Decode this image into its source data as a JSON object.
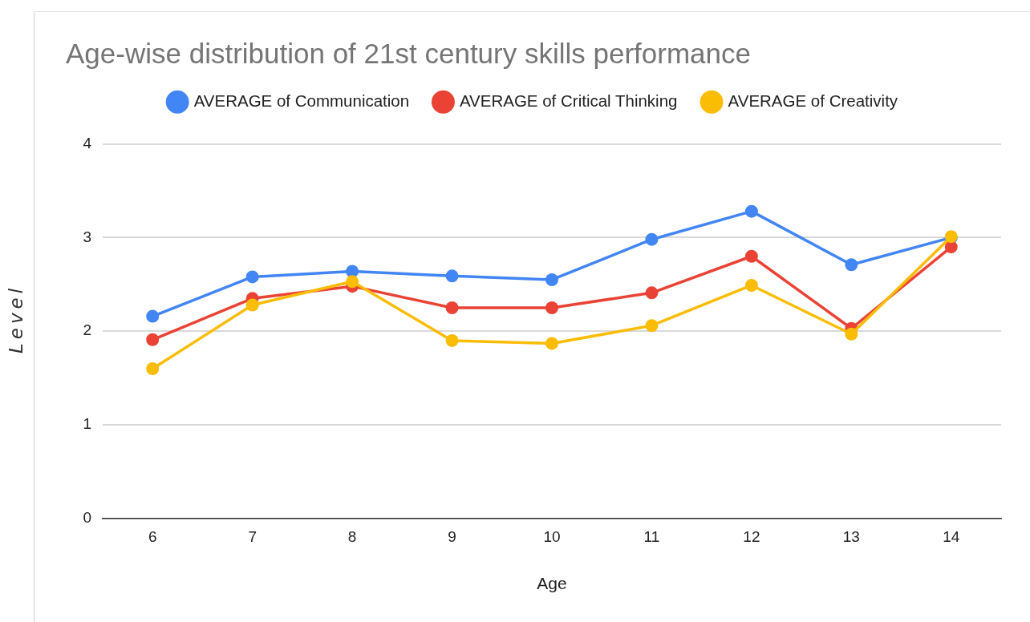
{
  "chart_data": {
    "type": "line",
    "title": "Age-wise distribution of 21st century skills performance",
    "xlabel": "Age",
    "ylabel": "Level",
    "categories": [
      "6",
      "7",
      "8",
      "9",
      "10",
      "11",
      "12",
      "13",
      "14"
    ],
    "series": [
      {
        "name": "AVERAGE of Communication",
        "color": "#4285f4",
        "values": [
          2.16,
          2.58,
          2.64,
          2.59,
          2.55,
          2.98,
          3.28,
          2.71,
          3.0
        ]
      },
      {
        "name": "AVERAGE of Critical Thinking",
        "color": "#ea4335",
        "values": [
          1.91,
          2.35,
          2.48,
          2.25,
          2.25,
          2.41,
          2.8,
          2.03,
          2.9
        ]
      },
      {
        "name": "AVERAGE of Creativity",
        "color": "#fbbc04",
        "values": [
          1.6,
          2.28,
          2.53,
          1.9,
          1.87,
          2.06,
          2.49,
          1.97,
          3.01
        ]
      }
    ],
    "ylim": [
      0,
      4
    ],
    "yticks": [
      0,
      1,
      2,
      3,
      4
    ],
    "grid": "y",
    "legend": "top",
    "marker": "circle",
    "line_style": "solid"
  }
}
